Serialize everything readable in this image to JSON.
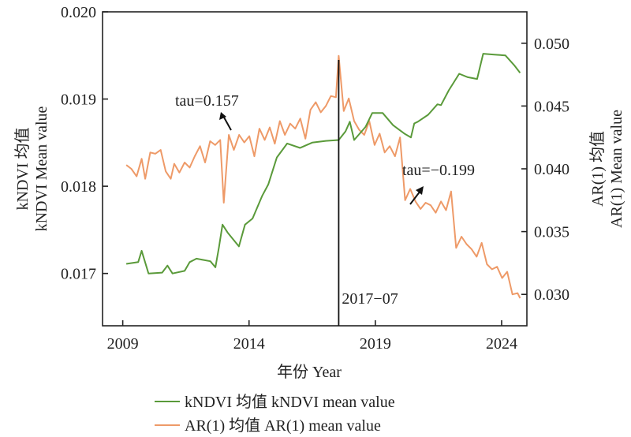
{
  "chart_data": {
    "type": "line",
    "title": "",
    "xlabel": "年份 Year",
    "ylabel_left": [
      "kNDVI 均值",
      "kNDVI Mean value"
    ],
    "ylabel_right": [
      "AR(1) 均值",
      "AR(1) Mean value"
    ],
    "xlim": [
      2008.2,
      2025.0
    ],
    "ylim_left": [
      0.0164,
      0.02
    ],
    "ylim_right": [
      0.0275,
      0.0525
    ],
    "x_ticks": [
      2009,
      2014,
      2019,
      2024
    ],
    "x_tick_labels": [
      "2009",
      "2014",
      "2019",
      "2024"
    ],
    "y_left_ticks": [
      0.017,
      0.018,
      0.019,
      0.02
    ],
    "y_left_tick_labels": [
      "0.017",
      "0.018",
      "0.019",
      "0.020"
    ],
    "y_right_ticks": [
      0.03,
      0.035,
      0.04,
      0.045,
      0.05
    ],
    "y_right_tick_labels": [
      "0.030",
      "0.035",
      "0.040",
      "0.045",
      "0.050"
    ],
    "grid": false,
    "legend_position": "bottom-center",
    "series": [
      {
        "name": "kNDVI 均值 kNDVI mean value",
        "axis": "left",
        "color": "#5a9a3a",
        "x": [
          2009.14,
          2009.61,
          2009.75,
          2010.02,
          2010.56,
          2010.77,
          2010.97,
          2011.45,
          2011.65,
          2011.92,
          2012.47,
          2012.67,
          2012.81,
          2012.95,
          2013.15,
          2013.6,
          2013.84,
          2014.14,
          2014.52,
          2014.76,
          2015.1,
          2015.51,
          2016.02,
          2016.5,
          2017.04,
          2017.55,
          2017.82,
          2017.99,
          2018.16,
          2018.61,
          2018.88,
          2019.29,
          2019.7,
          2020.17,
          2020.41,
          2020.54,
          2020.68,
          2021.09,
          2021.46,
          2021.6,
          2021.91,
          2022.32,
          2022.66,
          2023.03,
          2023.27,
          2023.71,
          2024.15,
          2024.49,
          2024.73
        ],
        "y": [
          0.01711,
          0.01713,
          0.01726,
          0.017,
          0.01701,
          0.01709,
          0.017,
          0.01703,
          0.01713,
          0.01717,
          0.01714,
          0.01707,
          0.0173,
          0.01756,
          0.01747,
          0.01731,
          0.01756,
          0.01763,
          0.01789,
          0.01802,
          0.01833,
          0.01849,
          0.01844,
          0.0185,
          0.01852,
          0.01853,
          0.01863,
          0.01874,
          0.01853,
          0.01868,
          0.01884,
          0.01884,
          0.0187,
          0.0186,
          0.01856,
          0.01872,
          0.01874,
          0.01882,
          0.01894,
          0.01893,
          0.0191,
          0.01929,
          0.01925,
          0.01923,
          0.01952,
          0.01951,
          0.0195,
          0.01939,
          0.0193
        ]
      },
      {
        "name": "AR(1) 均值 AR(1) mean value",
        "axis": "right",
        "color": "#ee9a68",
        "x": [
          2009.14,
          2009.34,
          2009.55,
          2009.75,
          2009.89,
          2010.09,
          2010.29,
          2010.5,
          2010.7,
          2010.9,
          2011.04,
          2011.24,
          2011.45,
          2011.65,
          2011.85,
          2012.06,
          2012.26,
          2012.46,
          2012.66,
          2012.86,
          2013.0,
          2013.2,
          2013.4,
          2013.61,
          2013.81,
          2014.01,
          2014.21,
          2014.41,
          2014.62,
          2014.82,
          2015.02,
          2015.22,
          2015.42,
          2015.63,
          2015.83,
          2016.03,
          2016.23,
          2016.43,
          2016.64,
          2016.84,
          2017.04,
          2017.24,
          2017.44,
          2017.55,
          2017.75,
          2017.95,
          2018.16,
          2018.36,
          2018.56,
          2018.76,
          2018.97,
          2019.17,
          2019.37,
          2019.57,
          2019.78,
          2019.98,
          2020.18,
          2020.38,
          2020.59,
          2020.79,
          2020.99,
          2021.19,
          2021.39,
          2021.6,
          2021.8,
          2022.0,
          2022.2,
          2022.41,
          2022.61,
          2022.81,
          2023.01,
          2023.21,
          2023.42,
          2023.62,
          2023.82,
          2024.02,
          2024.22,
          2024.43,
          2024.63,
          2024.73
        ],
        "y": [
          0.0403,
          0.04,
          0.0394,
          0.0408,
          0.0392,
          0.0413,
          0.0412,
          0.0415,
          0.0398,
          0.0392,
          0.0404,
          0.0397,
          0.0405,
          0.0401,
          0.041,
          0.0418,
          0.0405,
          0.0422,
          0.0419,
          0.0423,
          0.0373,
          0.0427,
          0.0415,
          0.0427,
          0.0421,
          0.0426,
          0.041,
          0.0432,
          0.0423,
          0.0433,
          0.042,
          0.0438,
          0.0427,
          0.0436,
          0.0432,
          0.044,
          0.0424,
          0.0447,
          0.0453,
          0.0445,
          0.045,
          0.0458,
          0.0457,
          0.049,
          0.0446,
          0.0456,
          0.0438,
          0.0431,
          0.0427,
          0.0438,
          0.0419,
          0.0428,
          0.0413,
          0.0418,
          0.041,
          0.0425,
          0.0375,
          0.0384,
          0.0374,
          0.0368,
          0.0373,
          0.0371,
          0.0365,
          0.0374,
          0.0367,
          0.0382,
          0.0337,
          0.0346,
          0.034,
          0.0336,
          0.033,
          0.0341,
          0.0324,
          0.032,
          0.0322,
          0.0313,
          0.0318,
          0.03,
          0.0301,
          0.0297
        ]
      }
    ],
    "vertical_line": {
      "x": 2017.55,
      "label": "2017−07"
    },
    "annotations": [
      {
        "text": "tau=0.157",
        "series": "AR(1) 均值 AR(1) mean value",
        "arrow": "up-left"
      },
      {
        "text": "tau=−0.199",
        "series": "AR(1) 均值 AR(1) mean value",
        "arrow": "up-right"
      }
    ],
    "legend": [
      {
        "label": "kNDVI 均值 kNDVI mean value",
        "color": "#5a9a3a"
      },
      {
        "label": "AR(1) 均值 AR(1) mean value",
        "color": "#ee9a68"
      }
    ]
  }
}
